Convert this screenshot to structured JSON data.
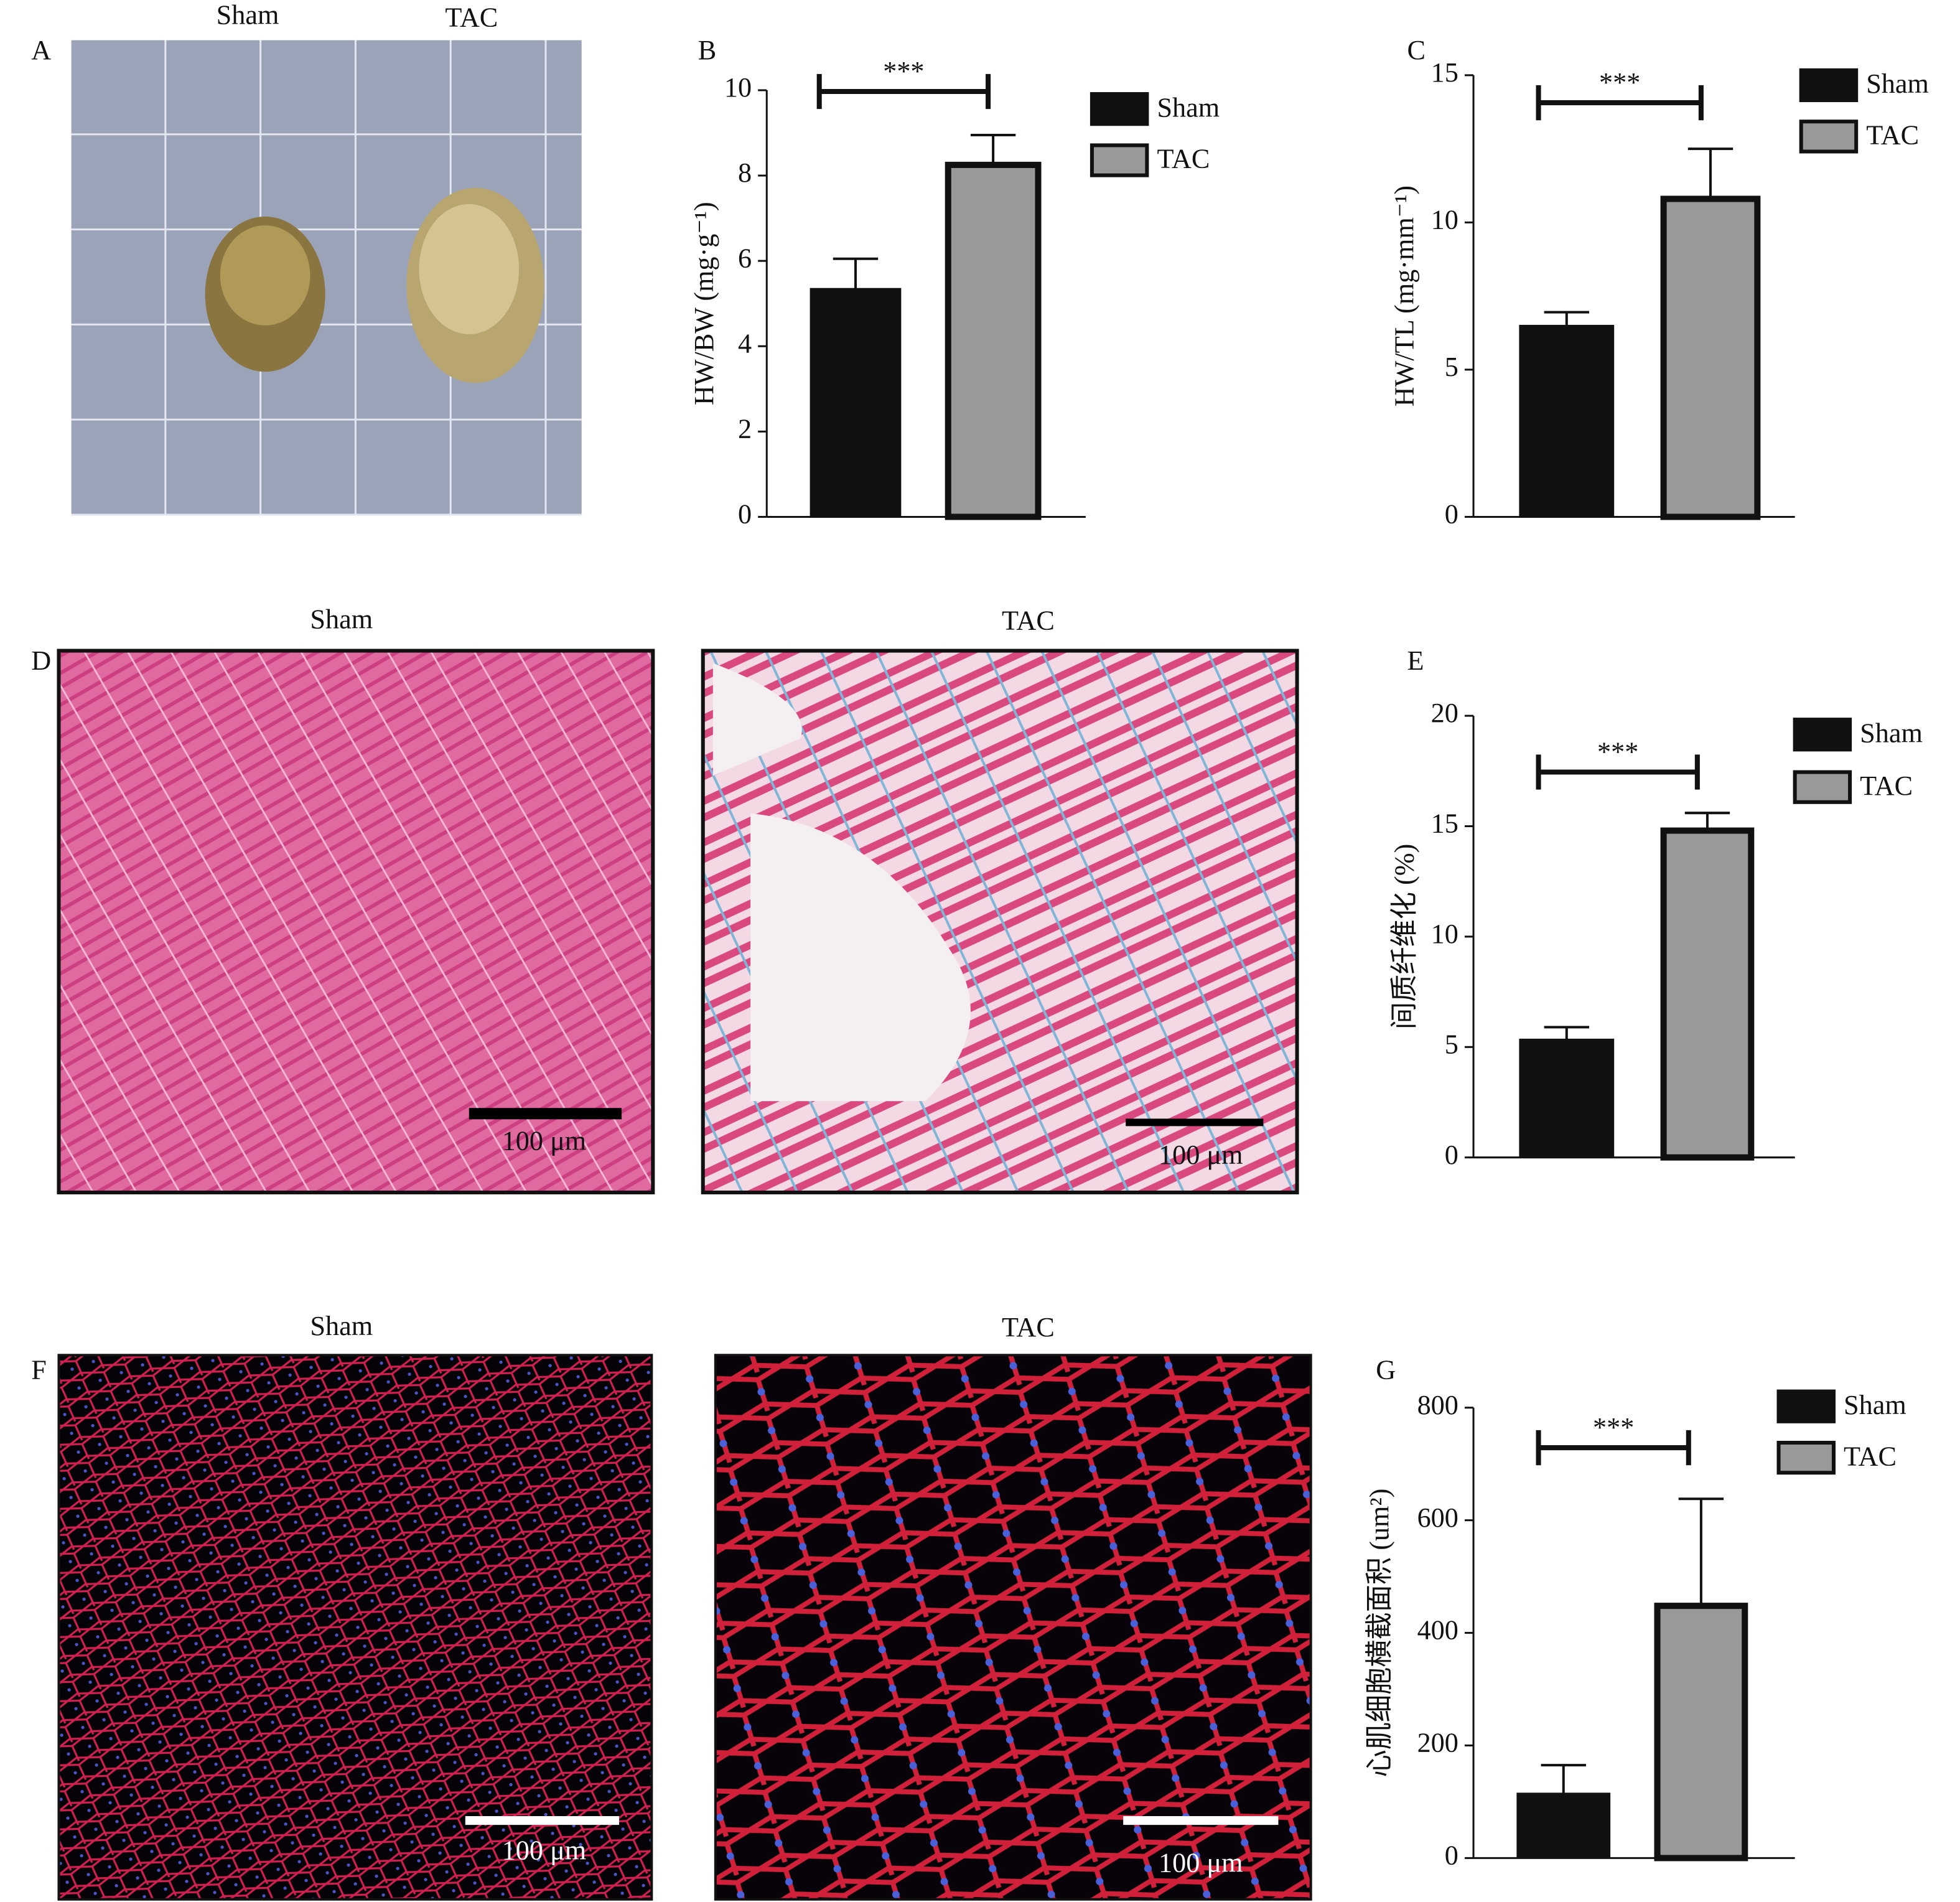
{
  "figure": {
    "A": {
      "label": "A",
      "groups": [
        "Sham",
        "TAC"
      ]
    },
    "D": {
      "label": "D",
      "groups": [
        "Sham",
        "TAC"
      ],
      "scale_bars": [
        "100 μm",
        "100 μm"
      ]
    },
    "F": {
      "label": "F",
      "groups": [
        "Sham",
        "TAC"
      ],
      "scale_bars": [
        "100 μm",
        "100 μm"
      ]
    }
  },
  "chart_data": [
    {
      "type": "bar",
      "label": "B",
      "y_label": "HW/BW (mg·g⁻¹)",
      "annotation": "***",
      "ylim": [
        0,
        10
      ],
      "yticks": [
        0,
        2,
        4,
        6,
        8,
        10
      ],
      "series": [
        {
          "name": "Sham",
          "color": "#111111",
          "values": [
            5.35
          ],
          "errors": [
            0.7
          ]
        },
        {
          "name": "TAC",
          "color": "#999999",
          "values": [
            8.25
          ],
          "errors": [
            0.7
          ]
        }
      ]
    },
    {
      "type": "bar",
      "label": "C",
      "y_label": "HW/TL (mg·mm⁻¹)",
      "annotation": "***",
      "ylim": [
        0,
        15
      ],
      "yticks": [
        0,
        5,
        10,
        15
      ],
      "series": [
        {
          "name": "Sham",
          "color": "#111111",
          "values": [
            6.5
          ],
          "errors": [
            0.45
          ]
        },
        {
          "name": "TAC",
          "color": "#999999",
          "values": [
            10.8
          ],
          "errors": [
            1.7
          ]
        }
      ]
    },
    {
      "type": "bar",
      "label": "E",
      "y_label": "间质纤维化 (%)",
      "annotation": "***",
      "ylim": [
        0,
        20
      ],
      "yticks": [
        0,
        5,
        10,
        15,
        20
      ],
      "series": [
        {
          "name": "Sham",
          "color": "#111111",
          "values": [
            5.35
          ],
          "errors": [
            0.55
          ]
        },
        {
          "name": "TAC",
          "color": "#999999",
          "values": [
            14.8
          ],
          "errors": [
            0.8
          ]
        }
      ]
    },
    {
      "type": "bar",
      "label": "G",
      "y_label": "心肌细胞横截面积 (um²)",
      "annotation": "***",
      "ylim": [
        0,
        800
      ],
      "yticks": [
        0,
        200,
        400,
        600,
        800
      ],
      "series": [
        {
          "name": "Sham",
          "color": "#111111",
          "values": [
            115
          ],
          "errors": [
            50
          ]
        },
        {
          "name": "TAC",
          "color": "#999999",
          "values": [
            448
          ],
          "errors": [
            190
          ]
        }
      ]
    }
  ]
}
